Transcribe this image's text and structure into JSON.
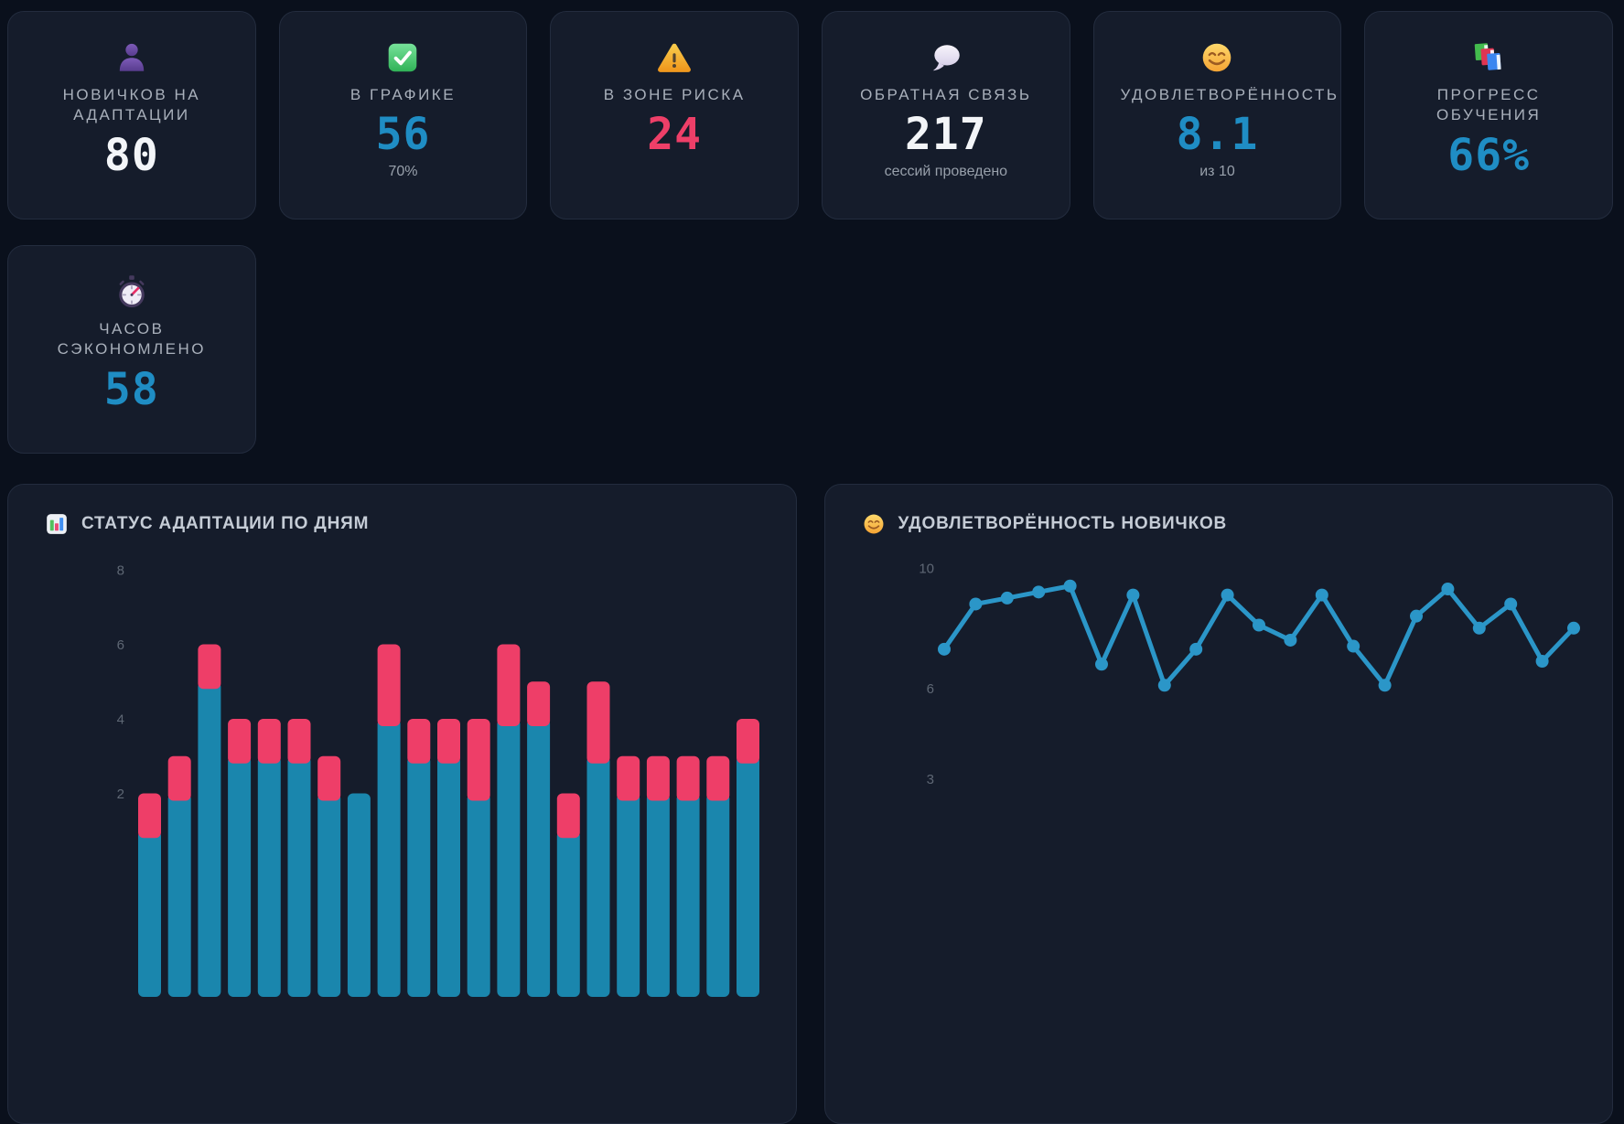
{
  "theme": {
    "page_bg": "#0a101c",
    "card_bg": "#151c2b",
    "card_border": "#232c3e",
    "label_color": "#a9b0bb",
    "value_white": "#f3f5f8",
    "value_blue": "#1f8dc4",
    "value_pink": "#ee3f68",
    "bar_blue": "#1a86ad",
    "bar_pink": "#ee3e68",
    "line_blue": "#2b96c8",
    "axis_tick_color": "#5e6774",
    "chart_title_color": "#c5ccd6"
  },
  "kpi_cards": [
    {
      "id": "newcomers",
      "icon": "person-icon",
      "label": "НОВИЧКОВ НА АДАПТАЦИИ",
      "value": "80",
      "value_color": "white",
      "sub": ""
    },
    {
      "id": "on-track",
      "icon": "check-icon",
      "label": "В ГРАФИКЕ",
      "value": "56",
      "value_color": "blue",
      "sub": "70%"
    },
    {
      "id": "at-risk",
      "icon": "warning-icon",
      "label": "В ЗОНЕ РИСКА",
      "value": "24",
      "value_color": "pink",
      "sub": ""
    },
    {
      "id": "feedback",
      "icon": "speech-bubble-icon",
      "label": "ОБРАТНАЯ СВЯЗЬ",
      "value": "217",
      "value_color": "white",
      "sub": "сессий проведено"
    },
    {
      "id": "satisfaction",
      "icon": "smiley-icon",
      "label": "УДОВЛЕТВОРЁННОСТЬ",
      "value": "8.1",
      "value_color": "blue",
      "sub": "из 10"
    },
    {
      "id": "training",
      "icon": "books-icon",
      "label": "ПРОГРЕСС ОБУЧЕНИЯ",
      "value": "66%",
      "value_color": "blue",
      "sub": ""
    },
    {
      "id": "hours-saved",
      "icon": "stopwatch-icon",
      "label": "ЧАСОВ СЭКОНОМЛЕНО",
      "value": "58",
      "value_color": "blue",
      "sub": ""
    }
  ],
  "chart_data": [
    {
      "type": "bar",
      "stacked": true,
      "title": "СТАТУС АДАПТАЦИИ ПО ДНЯМ",
      "icon": "bar-chart-icon",
      "y_ticks": [
        8,
        6,
        4,
        2
      ],
      "ylim": [
        0,
        8.6
      ],
      "grid": false,
      "legend": "none",
      "x_labels_visible": false,
      "series": [
        {
          "name": "blue-segment",
          "color": "#1a86ad",
          "values": [
            1,
            2,
            5,
            3,
            3,
            3,
            2,
            2,
            4,
            3,
            3,
            2,
            4,
            4,
            1,
            3,
            2,
            2,
            2,
            2,
            3
          ]
        },
        {
          "name": "pink-segment",
          "color": "#ee3e68",
          "values": [
            1,
            1,
            1,
            1,
            1,
            1,
            1,
            0,
            2,
            1,
            1,
            2,
            2,
            1,
            1,
            2,
            1,
            1,
            1,
            1,
            1
          ]
        }
      ],
      "totals": [
        2,
        3,
        6,
        4,
        4,
        4,
        3,
        2,
        6,
        4,
        4,
        4,
        6,
        5,
        2,
        5,
        3,
        3,
        3,
        3,
        4
      ]
    },
    {
      "type": "line",
      "title": "УДОВЛЕТВОРЁННОСТЬ НОВИЧКОВ",
      "icon": "smiley-icon",
      "y_ticks": [
        10,
        6,
        3
      ],
      "ylim": [
        0,
        10.8
      ],
      "grid": false,
      "legend": "none",
      "x_labels_visible": false,
      "color": "#2b96c8",
      "values": [
        7.3,
        8.8,
        9.0,
        9.2,
        9.4,
        6.8,
        9.1,
        6.1,
        7.3,
        9.1,
        8.1,
        7.6,
        9.1,
        7.4,
        6.1,
        8.4,
        9.3,
        8.0,
        8.8,
        6.9,
        8.0
      ]
    }
  ]
}
